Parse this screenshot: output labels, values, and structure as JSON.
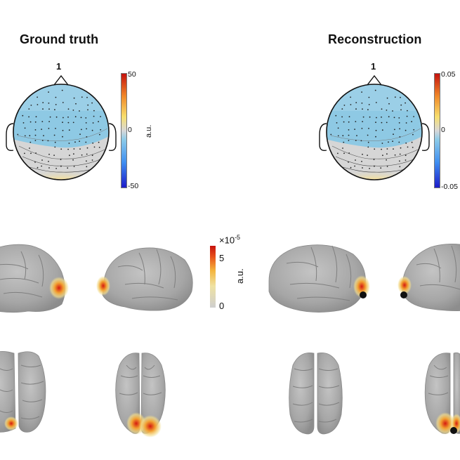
{
  "panels": [
    {
      "title": "Ground truth",
      "topo_label": "1",
      "colorbar": {
        "max": "50",
        "mid": "0",
        "min": "-50",
        "unit": "a.u."
      }
    },
    {
      "title": "Reconstruction",
      "topo_label": "1",
      "colorbar": {
        "max": "0.05",
        "mid": "0",
        "min": "-0.05",
        "unit": "a.u."
      }
    }
  ],
  "brain_colorbar": {
    "exponent_label": "×10",
    "exponent_power": "-5",
    "max": "5",
    "min": "0",
    "unit": "a.u."
  },
  "colors": {
    "scalp_blue": "#8ec9e4",
    "hot_red": "#d81f10",
    "orange": "#f19a2d",
    "cortex_gray": "#a8a8a8",
    "marker": "#111111"
  }
}
